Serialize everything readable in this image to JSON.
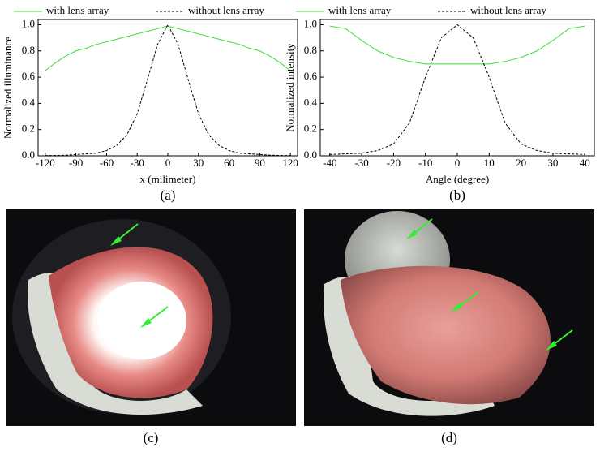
{
  "chart_data": [
    {
      "type": "line",
      "caption": "(a)",
      "x_label": "x (milimeter)",
      "y_label": "Normalized illuminance",
      "x": [
        -120,
        -110,
        -100,
        -90,
        -80,
        -70,
        -60,
        -50,
        -40,
        -30,
        -20,
        -10,
        0,
        10,
        20,
        30,
        40,
        50,
        60,
        70,
        80,
        90,
        100,
        110,
        120
      ],
      "series": [
        {
          "name": "with lens array",
          "color": "#3ddc3d",
          "style": "solid",
          "values": [
            0.65,
            0.71,
            0.76,
            0.8,
            0.82,
            0.85,
            0.87,
            0.89,
            0.91,
            0.93,
            0.95,
            0.97,
            0.99,
            0.97,
            0.95,
            0.93,
            0.91,
            0.89,
            0.87,
            0.85,
            0.82,
            0.8,
            0.76,
            0.71,
            0.65
          ]
        },
        {
          "name": "without lens array",
          "color": "#000000",
          "style": "dashed",
          "values": [
            0.002,
            0.003,
            0.005,
            0.01,
            0.015,
            0.02,
            0.04,
            0.08,
            0.16,
            0.32,
            0.58,
            0.85,
            1.0,
            0.85,
            0.58,
            0.32,
            0.16,
            0.08,
            0.04,
            0.02,
            0.015,
            0.01,
            0.005,
            0.003,
            0.002
          ]
        }
      ],
      "xlim": [
        -127,
        127
      ],
      "xticks": [
        -120,
        -90,
        -60,
        -30,
        0,
        30,
        60,
        90,
        120
      ],
      "ylim": [
        0,
        1.04
      ],
      "yticks": [
        {
          "value": 0,
          "label": "0.0"
        },
        0.2,
        0.4,
        0.6,
        0.8,
        {
          "value": 1,
          "label": "1.0"
        }
      ],
      "legend": "top",
      "grid": false
    },
    {
      "type": "line",
      "caption": "(b)",
      "x_label": "Angle (degree)",
      "y_label": "Normalized intensity",
      "x": [
        -40,
        -35,
        -30,
        -25,
        -20,
        -15,
        -10,
        -5,
        0,
        5,
        10,
        15,
        20,
        25,
        30,
        35,
        40
      ],
      "series": [
        {
          "name": "with lens array",
          "color": "#3ddc3d",
          "style": "solid",
          "values": [
            0.99,
            0.97,
            0.88,
            0.8,
            0.75,
            0.72,
            0.7,
            0.7,
            0.7,
            0.7,
            0.7,
            0.72,
            0.75,
            0.8,
            0.88,
            0.97,
            0.99
          ]
        },
        {
          "name": "without lens array",
          "color": "#000000",
          "style": "dashed",
          "values": [
            0.01,
            0.015,
            0.02,
            0.04,
            0.09,
            0.25,
            0.6,
            0.9,
            1.0,
            0.9,
            0.6,
            0.25,
            0.09,
            0.04,
            0.02,
            0.015,
            0.01
          ]
        }
      ],
      "xlim": [
        -43,
        43
      ],
      "xticks": [
        -40,
        -30,
        -20,
        -10,
        0,
        10,
        20,
        30,
        40
      ],
      "ylim": [
        0,
        1.04
      ],
      "yticks": [
        {
          "value": 0,
          "label": "0.0"
        },
        0.2,
        0.4,
        0.6,
        0.8,
        {
          "value": 1,
          "label": "1.0"
        }
      ],
      "legend": "top",
      "grid": false
    }
  ],
  "images": [
    {
      "caption": "(c)"
    },
    {
      "caption": "(d)"
    }
  ]
}
